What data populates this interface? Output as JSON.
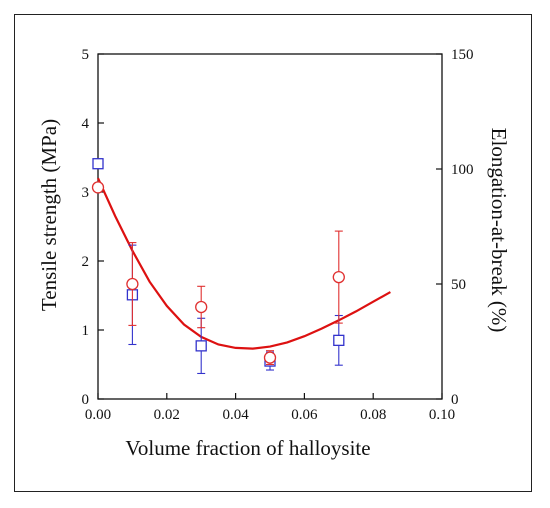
{
  "chart_data": {
    "type": "scatter",
    "xlabel": "Volume fraction of halloysite",
    "ylabel": "Tensile strength (MPa)",
    "y2label": "Elongation-at-break (%)",
    "xlim": [
      0.0,
      0.1
    ],
    "ylim": [
      0,
      5
    ],
    "y2lim": [
      0,
      150
    ],
    "x_ticks": [
      "0.00",
      "0.02",
      "0.04",
      "0.06",
      "0.08",
      "0.10"
    ],
    "y_ticks": [
      "0",
      "1",
      "2",
      "3",
      "4",
      "5"
    ],
    "y2_ticks": [
      "0",
      "50",
      "100",
      "150"
    ],
    "grid": false,
    "series": [
      {
        "axis": "left",
        "marker": "square",
        "color": "#3333cc",
        "points": [
          {
            "x": 0.0,
            "y": 3.41,
            "err": 0.0
          },
          {
            "x": 0.01,
            "y": 1.51,
            "err": 0.72
          },
          {
            "x": 0.03,
            "y": 0.77,
            "err": 0.4
          },
          {
            "x": 0.05,
            "y": 0.55,
            "err": 0.13
          },
          {
            "x": 0.07,
            "y": 0.85,
            "err": 0.36
          }
        ]
      },
      {
        "axis": "right",
        "marker": "circle",
        "color": "#e03030",
        "points": [
          {
            "x": 0.0,
            "y": 92,
            "err": 0
          },
          {
            "x": 0.01,
            "y": 50,
            "err": 18
          },
          {
            "x": 0.03,
            "y": 40,
            "err": 9
          },
          {
            "x": 0.05,
            "y": 18,
            "err": 3
          },
          {
            "x": 0.07,
            "y": 53,
            "err": 20
          }
        ]
      }
    ],
    "fit_curve": {
      "axis": "left",
      "color": "#dd1111",
      "x": [
        0.0,
        0.005,
        0.01,
        0.015,
        0.02,
        0.025,
        0.03,
        0.035,
        0.04,
        0.045,
        0.05,
        0.055,
        0.06,
        0.065,
        0.07,
        0.075,
        0.08,
        0.085
      ],
      "y": [
        3.2,
        2.65,
        2.15,
        1.7,
        1.35,
        1.08,
        0.9,
        0.79,
        0.74,
        0.73,
        0.76,
        0.82,
        0.91,
        1.02,
        1.14,
        1.27,
        1.41,
        1.55
      ]
    }
  }
}
